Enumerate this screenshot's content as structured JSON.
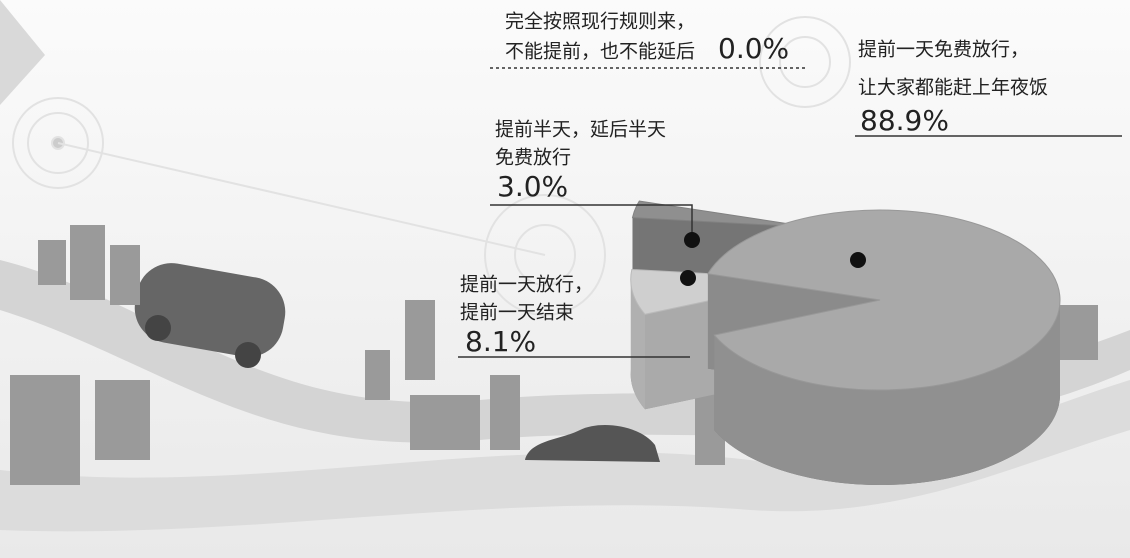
{
  "chart_data": {
    "type": "pie",
    "categories": [
      [
        "提前一天免费放行，",
        "让大家都能赶上年夜饭"
      ],
      [
        "提前一天放行，",
        "提前一天结束"
      ],
      [
        "提前半天，延后半天",
        "免费放行"
      ],
      [
        "完全按照现行规则来，",
        "不能提前，也不能延后"
      ]
    ],
    "values": [
      88.9,
      8.1,
      3.0,
      0.0
    ],
    "value_labels": [
      "88.9%",
      "8.1%",
      "3.0%",
      "0.0%"
    ],
    "colors": [
      "#a9a9a9",
      "#cfcfcf",
      "#8f8f8f",
      "#6a6a6a"
    ]
  }
}
